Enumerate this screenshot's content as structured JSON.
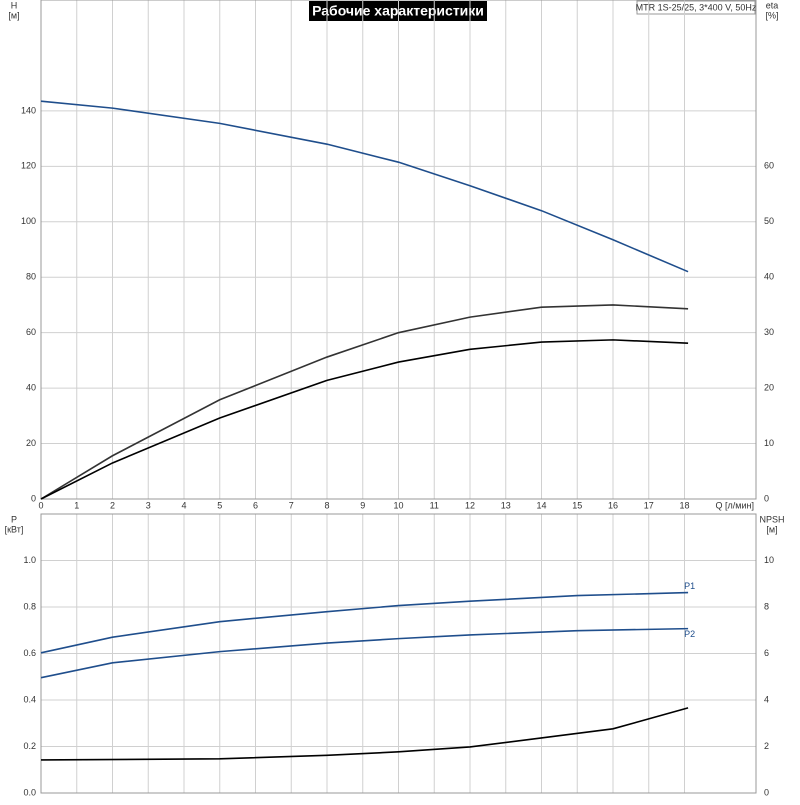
{
  "header": {
    "title": "Рабочие характеристики",
    "info": "MTR 1S-25/25, 3*400 V, 50Hz"
  },
  "chart_data": [
    {
      "type": "line",
      "y_label": "H",
      "y_unit": "[м]",
      "y2_label": "eta",
      "y2_unit": "[%]",
      "x_label": "Q [л/мин]",
      "xlim": [
        0,
        20
      ],
      "xticks": [
        0,
        1,
        2,
        3,
        4,
        5,
        6,
        7,
        8,
        9,
        10,
        11,
        12,
        13,
        14,
        15,
        16,
        17,
        18
      ],
      "ylim": [
        0,
        180
      ],
      "yticks": [
        0,
        20,
        40,
        60,
        80,
        100,
        120,
        140
      ],
      "y2lim": [
        0,
        90
      ],
      "y2ticks": [
        0,
        10,
        20,
        30,
        40,
        50,
        60
      ],
      "grid": true,
      "series": [
        {
          "color": "#1f4e8c",
          "x": [
            0,
            2,
            5,
            8,
            10,
            12,
            14,
            16,
            18.1
          ],
          "values": [
            143.5,
            141,
            135.5,
            128,
            121.5,
            113,
            104,
            93.5,
            82
          ]
        },
        {
          "color": "#333333",
          "axis": "y2",
          "x": [
            0,
            2,
            5,
            8,
            10,
            12,
            14,
            16,
            18.1
          ],
          "values": [
            0,
            7.8,
            17.9,
            25.6,
            30,
            32.8,
            34.6,
            35,
            34.3
          ]
        },
        {
          "color": "#000000",
          "axis": "y2",
          "x": [
            0,
            2,
            5,
            8,
            10,
            12,
            14,
            16,
            18.1
          ],
          "values": [
            0,
            6.5,
            14.6,
            21.4,
            24.7,
            27,
            28.3,
            28.7,
            28.1
          ]
        }
      ]
    },
    {
      "type": "line",
      "y_label": "P",
      "y_unit": "[кВт]",
      "y2_label": "NPSH",
      "y2_unit": "[м]",
      "xlim": [
        0,
        20
      ],
      "xticks": [
        0,
        1,
        2,
        3,
        4,
        5,
        6,
        7,
        8,
        9,
        10,
        11,
        12,
        13,
        14,
        15,
        16,
        17,
        18
      ],
      "ylim": [
        0,
        1.2
      ],
      "yticks": [
        {
          "value": 0,
          "label": "0.0"
        },
        0.2,
        0.4,
        0.6,
        0.8,
        {
          "value": 1,
          "label": "1.0"
        }
      ],
      "y2lim": [
        0,
        12
      ],
      "y2ticks": [
        0,
        2,
        4,
        6,
        8,
        10
      ],
      "grid": true,
      "series": [
        {
          "name": "P1",
          "color": "#1f4e8c",
          "x": [
            0,
            2,
            5,
            8,
            10,
            12,
            15,
            18.1
          ],
          "values": [
            0.603,
            0.67,
            0.737,
            0.78,
            0.806,
            0.825,
            0.849,
            0.862
          ]
        },
        {
          "name": "P2",
          "color": "#1f4e8c",
          "x": [
            0,
            2,
            5,
            8,
            10,
            12,
            15,
            18.1
          ],
          "values": [
            0.496,
            0.56,
            0.608,
            0.645,
            0.664,
            0.68,
            0.698,
            0.707
          ]
        },
        {
          "color": "#000000",
          "axis": "y2",
          "x": [
            0,
            5,
            8,
            10,
            12,
            14,
            16,
            18.1
          ],
          "values": [
            1.42,
            1.47,
            1.62,
            1.77,
            1.98,
            2.37,
            2.76,
            3.66
          ]
        }
      ]
    }
  ]
}
